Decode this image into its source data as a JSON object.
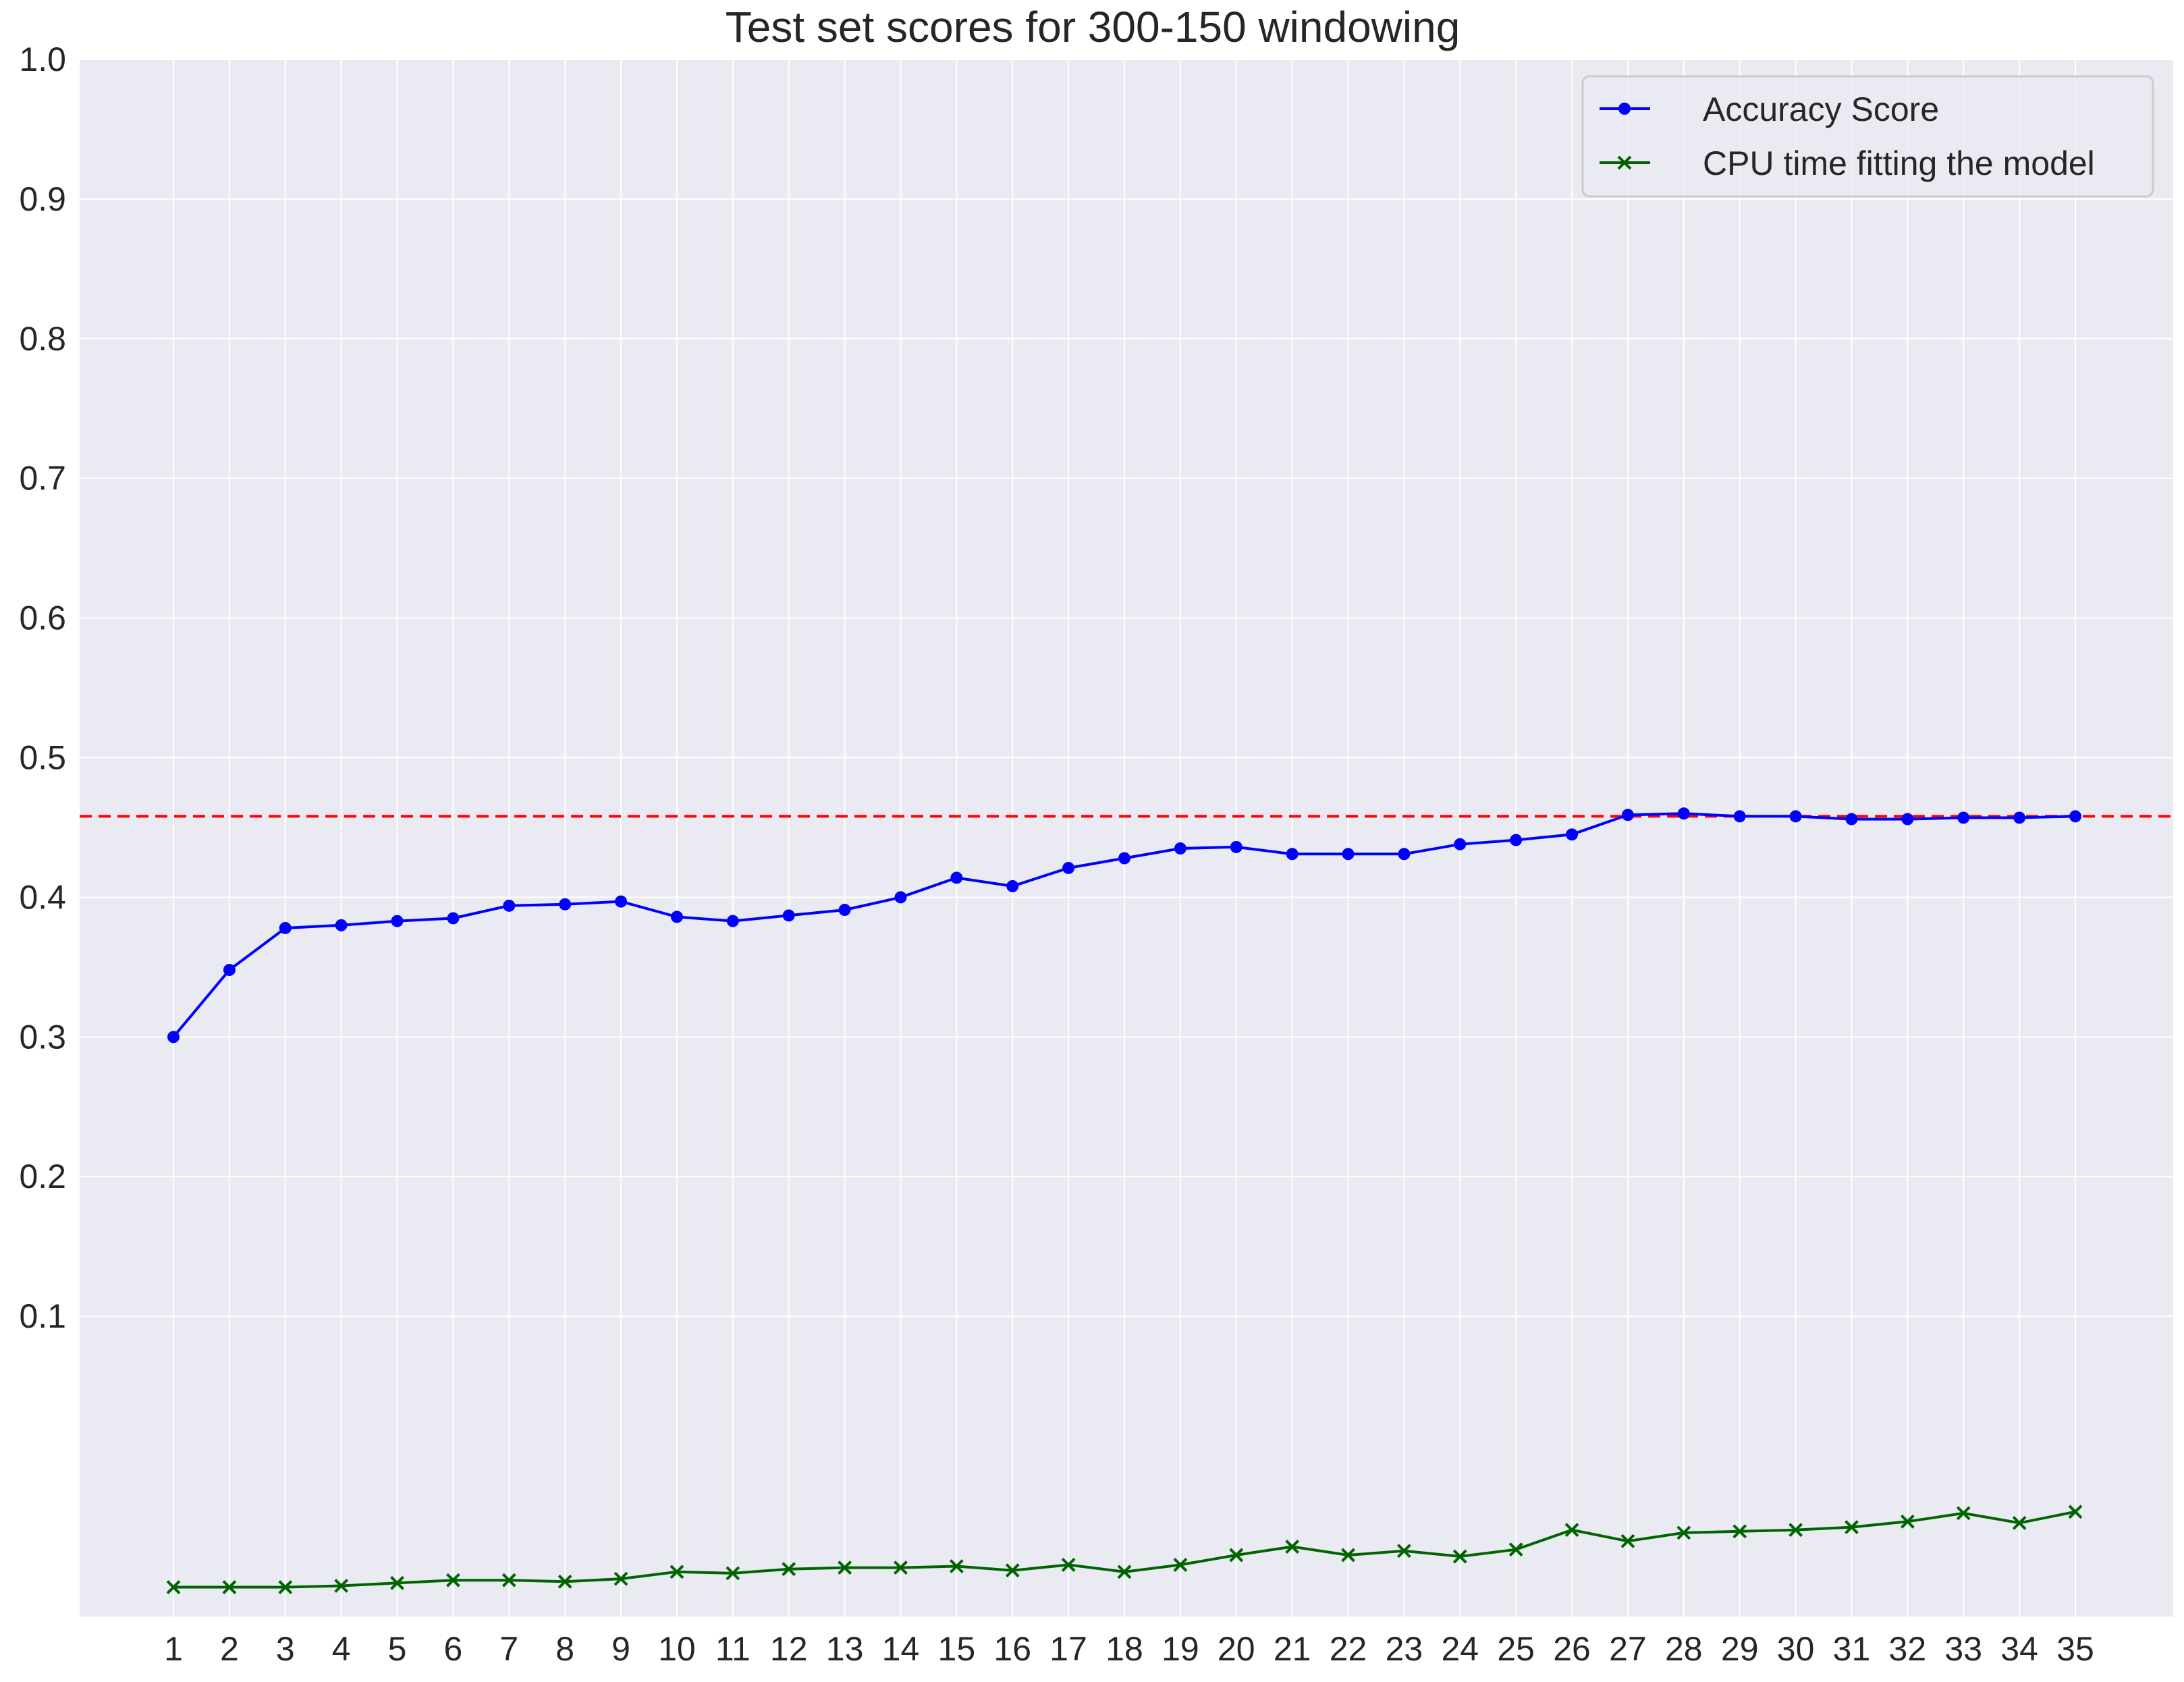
{
  "chart_data": {
    "type": "line",
    "title": "Test set scores for 300-150 windowing",
    "xlabel": "",
    "ylabel": "",
    "x": [
      1,
      2,
      3,
      4,
      5,
      6,
      7,
      8,
      9,
      10,
      11,
      12,
      13,
      14,
      15,
      16,
      17,
      18,
      19,
      20,
      21,
      22,
      23,
      24,
      25,
      26,
      27,
      28,
      29,
      30,
      31,
      32,
      33,
      34,
      35
    ],
    "y_ticks": [
      "0.1",
      "0.2",
      "0.3",
      "0.4",
      "0.5",
      "0.6",
      "0.7",
      "0.8",
      "0.9",
      "1.0"
    ],
    "ylim": [
      -0.115,
      1.0
    ],
    "grid": true,
    "background": "#eaeaf2",
    "legend_position": "top-right",
    "series": [
      {
        "name": "Accuracy Score",
        "color": "#0000ff",
        "marker": "circle",
        "values": [
          0.3,
          0.348,
          0.378,
          0.38,
          0.383,
          0.385,
          0.394,
          0.395,
          0.397,
          0.386,
          0.383,
          0.387,
          0.391,
          0.4,
          0.414,
          0.408,
          0.421,
          0.428,
          0.435,
          0.436,
          0.431,
          0.431,
          0.431,
          0.438,
          0.441,
          0.445,
          0.459,
          0.46,
          0.458,
          0.458,
          0.456,
          0.456,
          0.457,
          0.457,
          0.458
        ]
      },
      {
        "name": "CPU time fitting the model",
        "color": "#006400",
        "marker": "x",
        "values": [
          -0.094,
          -0.094,
          -0.094,
          -0.093,
          -0.091,
          -0.089,
          -0.089,
          -0.09,
          -0.088,
          -0.083,
          -0.084,
          -0.081,
          -0.08,
          -0.08,
          -0.079,
          -0.082,
          -0.078,
          -0.083,
          -0.078,
          -0.071,
          -0.065,
          -0.071,
          -0.068,
          -0.072,
          -0.067,
          -0.053,
          -0.061,
          -0.055,
          -0.054,
          -0.053,
          -0.051,
          -0.047,
          -0.041,
          -0.048,
          -0.04
        ]
      }
    ],
    "reference_line": {
      "value": 0.458,
      "color": "#ff0000",
      "style": "dashed"
    }
  }
}
